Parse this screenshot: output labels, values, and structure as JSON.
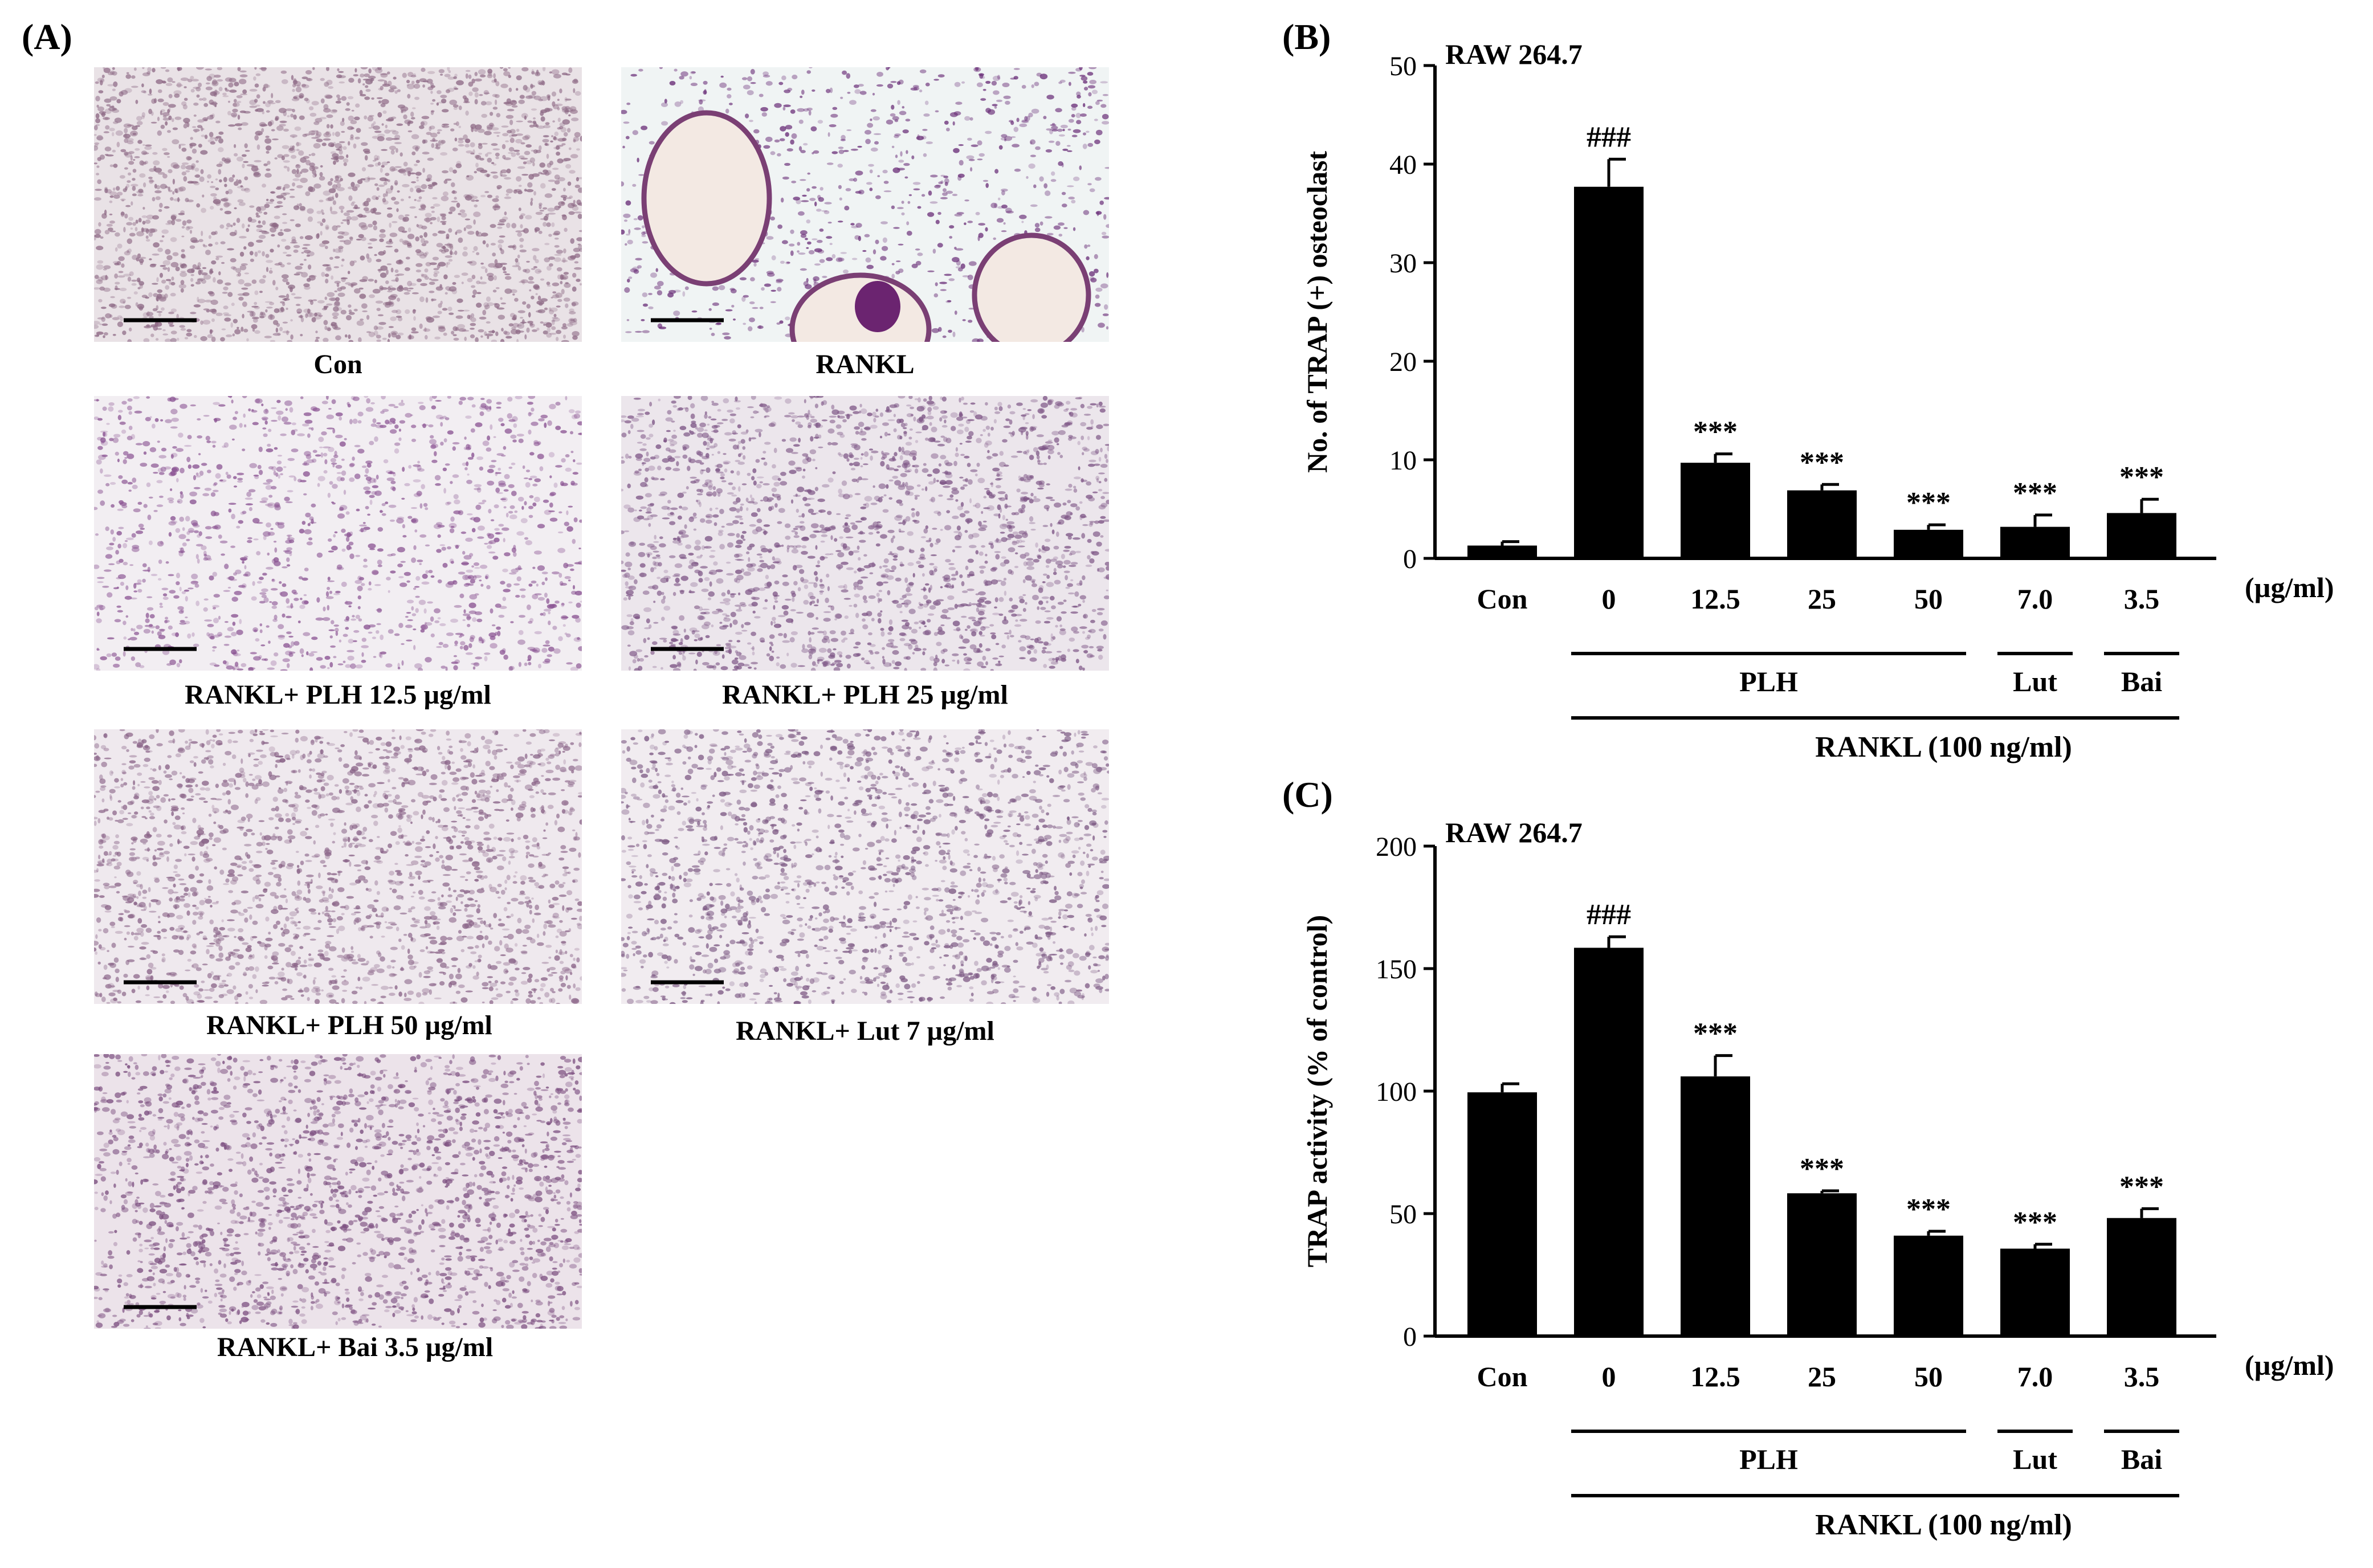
{
  "panels": {
    "a": {
      "letter": "(A)"
    },
    "b": {
      "letter": "(B)"
    },
    "c": {
      "letter": "(C)"
    }
  },
  "micrographs": [
    {
      "caption": "Con",
      "stain_density": 0.95,
      "background": "#e9e2e6",
      "cell_color": "#8e6a86"
    },
    {
      "caption": "RANKL",
      "stain_density": 0.35,
      "background": "#f0f4f4",
      "cell_color": "#6a2e78"
    },
    {
      "caption": "RANKL+ PLH 12.5 µg/ml",
      "stain_density": 0.55,
      "background": "#f2eef2",
      "cell_color": "#8b5493"
    },
    {
      "caption": "RANKL+ PLH 25 µg/ml",
      "stain_density": 0.8,
      "background": "#ece6ec",
      "cell_color": "#7e5686"
    },
    {
      "caption": "RANKL+ PLH 50 µg/ml",
      "stain_density": 0.8,
      "background": "#efe9ee",
      "cell_color": "#8a6488"
    },
    {
      "caption": "RANKL+ Lut 7 µg/ml",
      "stain_density": 0.7,
      "background": "#f1ecf0",
      "cell_color": "#7d5a84"
    },
    {
      "caption": "RANKL+ Bai 3.5 µg/ml",
      "stain_density": 0.8,
      "background": "#ece3ea",
      "cell_color": "#7c4f80"
    }
  ],
  "chart_data": [
    {
      "type": "bar",
      "panel": "B",
      "title": "RAW 264.7",
      "ylabel": "No. of TRAP (+) osteoclast",
      "ylim": [
        0,
        50
      ],
      "yticks": [
        0,
        10,
        20,
        30,
        40,
        50
      ],
      "categories": [
        "Con",
        "0",
        "12.5",
        "25",
        "50",
        "7.0",
        "3.5"
      ],
      "values": [
        1.3,
        37.7,
        9.7,
        6.9,
        2.9,
        3.2,
        4.6
      ],
      "errors": [
        0.4,
        2.8,
        0.9,
        0.6,
        0.5,
        1.2,
        1.4
      ],
      "annotations": [
        "",
        "###",
        "***",
        "***",
        "***",
        "***",
        "***"
      ],
      "unit_label": "(µg/ml)",
      "groups": [
        {
          "label": "PLH",
          "from": 1,
          "to": 4
        },
        {
          "label": "Lut",
          "from": 5,
          "to": 5
        },
        {
          "label": "Bai",
          "from": 6,
          "to": 6
        }
      ],
      "treatment_label": "RANKL (100 ng/ml)",
      "bar_color": "#000000"
    },
    {
      "type": "bar",
      "panel": "C",
      "title": "RAW 264.7",
      "ylabel": "TRAP activity (% of control)",
      "ylim": [
        0,
        200
      ],
      "yticks": [
        0,
        50,
        100,
        150,
        200
      ],
      "categories": [
        "Con",
        "0",
        "12.5",
        "25",
        "50",
        "7.0",
        "3.5"
      ],
      "values": [
        99.5,
        158.5,
        106,
        58.3,
        41,
        35.7,
        48.2
      ],
      "errors": [
        3.5,
        4.5,
        8.5,
        1.0,
        1.8,
        1.8,
        3.8
      ],
      "annotations": [
        "",
        "###",
        "***",
        "***",
        "***",
        "***",
        "***"
      ],
      "unit_label": "(µg/ml)",
      "groups": [
        {
          "label": "PLH",
          "from": 1,
          "to": 4
        },
        {
          "label": "Lut",
          "from": 5,
          "to": 5
        },
        {
          "label": "Bai",
          "from": 6,
          "to": 6
        }
      ],
      "treatment_label": "RANKL (100 ng/ml)",
      "bar_color": "#000000"
    }
  ]
}
